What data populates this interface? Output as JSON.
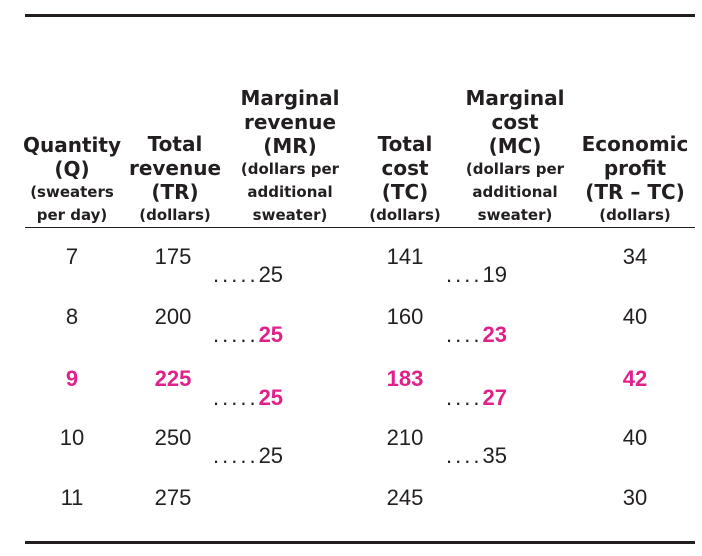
{
  "headers": {
    "quantity": {
      "l1": "Quantity",
      "l2": "(Q)",
      "l3": "(sweaters",
      "l4": "per day)"
    },
    "tr": {
      "l1": "Total",
      "l2": "revenue",
      "l3": "(TR)",
      "l4": "(dollars)"
    },
    "mr": {
      "l1": "Marginal",
      "l2": "revenue",
      "l3": "(MR)",
      "l4": "(dollars per",
      "l5": "additional",
      "l6": "sweater)"
    },
    "tc": {
      "l1": "Total",
      "l2": "cost",
      "l3": "(TC)",
      "l4": "(dollars)"
    },
    "mc": {
      "l1": "Marginal",
      "l2": "cost",
      "l3": "(MC)",
      "l4": "(dollars per",
      "l5": "additional",
      "l6": "sweater)"
    },
    "profit": {
      "l1": "Economic",
      "l2": "profit",
      "l3": "(TR – TC)",
      "l4": "(dollars)"
    }
  },
  "rows": [
    {
      "q": "7",
      "tr": "175",
      "tc": "141",
      "profit": "34"
    },
    {
      "q": "8",
      "tr": "200",
      "tc": "160",
      "profit": "40"
    },
    {
      "q": "9",
      "tr": "225",
      "tc": "183",
      "profit": "42"
    },
    {
      "q": "10",
      "tr": "250",
      "tc": "210",
      "profit": "40"
    },
    {
      "q": "11",
      "tr": "275",
      "tc": "245",
      "profit": "30"
    }
  ],
  "marginal": [
    {
      "mr": "25",
      "mc": "19"
    },
    {
      "mr": "25",
      "mc": "23"
    },
    {
      "mr": "25",
      "mc": "27"
    },
    {
      "mr": "25",
      "mc": "35"
    }
  ],
  "dots": {
    "mr": ".....",
    "mc": "...."
  },
  "colors": {
    "text": "#231f20",
    "highlight": "#e0218a"
  }
}
